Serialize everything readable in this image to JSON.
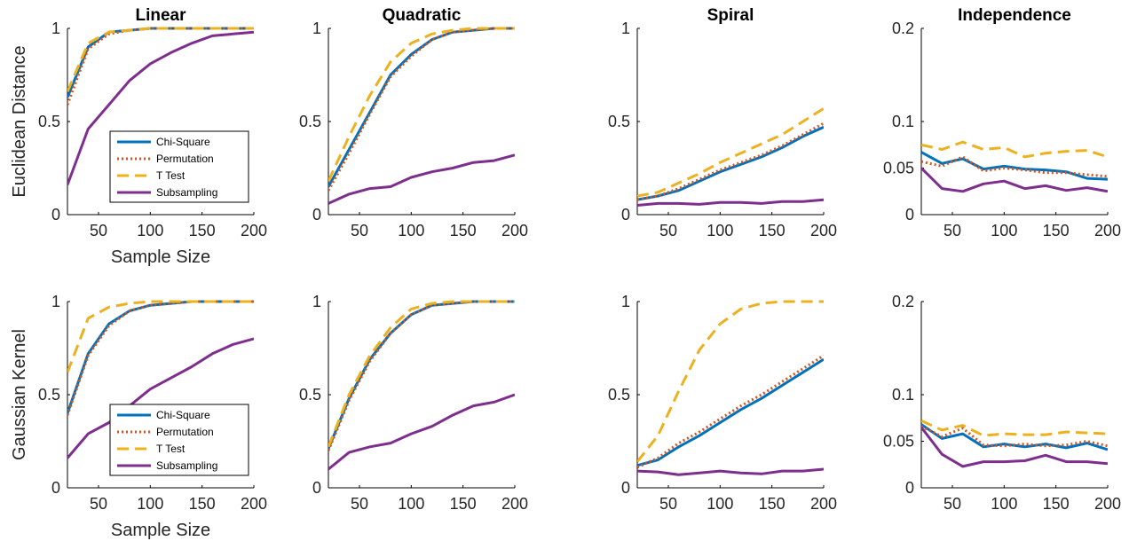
{
  "chart_data": [
    {
      "type": "line",
      "row": "euclidean",
      "col": "linear",
      "title": "Linear",
      "ylabel": "Euclidean Distance",
      "xlabel": "Sample Size",
      "xlim": [
        20,
        200
      ],
      "ylim": [
        0,
        1
      ],
      "xticks": [
        50,
        100,
        150,
        200
      ],
      "yticks": [
        0,
        0.5,
        1
      ],
      "ytick_labels": [
        "0",
        "0.5",
        "1"
      ],
      "legend": true,
      "x": [
        20,
        40,
        60,
        80,
        100,
        120,
        140,
        160,
        180,
        200
      ],
      "series": [
        {
          "name": "Chi-Square",
          "color": "#0072BD",
          "style": "solid",
          "values": [
            0.63,
            0.9,
            0.98,
            0.99,
            1.0,
            1.0,
            1.0,
            1.0,
            1.0,
            1.0
          ]
        },
        {
          "name": "Permutation",
          "color": "#D95319",
          "style": "dotted",
          "values": [
            0.59,
            0.89,
            0.97,
            0.99,
            1.0,
            1.0,
            1.0,
            1.0,
            1.0,
            1.0
          ]
        },
        {
          "name": "T Test",
          "color": "#EDB120",
          "style": "dashed",
          "values": [
            0.66,
            0.92,
            0.98,
            0.99,
            1.0,
            1.0,
            1.0,
            1.0,
            1.0,
            1.0
          ]
        },
        {
          "name": "Subsampling",
          "color": "#7E2F8E",
          "style": "solid",
          "values": [
            0.16,
            0.46,
            0.59,
            0.72,
            0.81,
            0.87,
            0.92,
            0.96,
            0.97,
            0.98
          ]
        }
      ]
    },
    {
      "type": "line",
      "row": "euclidean",
      "col": "quadratic",
      "title": "Quadratic",
      "xlim": [
        20,
        200
      ],
      "ylim": [
        0,
        1
      ],
      "xticks": [
        50,
        100,
        150,
        200
      ],
      "yticks": [
        0,
        0.5,
        1
      ],
      "ytick_labels": [
        "0",
        "0.5",
        "1"
      ],
      "legend": false,
      "x": [
        20,
        40,
        60,
        80,
        100,
        120,
        140,
        160,
        180,
        200
      ],
      "series": [
        {
          "name": "Chi-Square",
          "color": "#0072BD",
          "style": "solid",
          "values": [
            0.15,
            0.35,
            0.55,
            0.75,
            0.86,
            0.94,
            0.98,
            0.99,
            1.0,
            1.0
          ]
        },
        {
          "name": "Permutation",
          "color": "#D95319",
          "style": "dotted",
          "values": [
            0.13,
            0.33,
            0.54,
            0.74,
            0.85,
            0.94,
            0.98,
            0.99,
            1.0,
            1.0
          ]
        },
        {
          "name": "T Test",
          "color": "#EDB120",
          "style": "dashed",
          "values": [
            0.18,
            0.42,
            0.64,
            0.82,
            0.92,
            0.97,
            0.99,
            1.0,
            1.0,
            1.0
          ]
        },
        {
          "name": "Subsampling",
          "color": "#7E2F8E",
          "style": "solid",
          "values": [
            0.06,
            0.11,
            0.14,
            0.15,
            0.2,
            0.23,
            0.25,
            0.28,
            0.29,
            0.32
          ]
        }
      ]
    },
    {
      "type": "line",
      "row": "euclidean",
      "col": "spiral",
      "title": "Spiral",
      "xlim": [
        20,
        200
      ],
      "ylim": [
        0,
        1
      ],
      "xticks": [
        50,
        100,
        150,
        200
      ],
      "yticks": [
        0,
        0.5,
        1
      ],
      "ytick_labels": [
        "0",
        "0.5",
        "1"
      ],
      "legend": false,
      "x": [
        20,
        40,
        60,
        80,
        100,
        120,
        140,
        160,
        180,
        200
      ],
      "series": [
        {
          "name": "Chi-Square",
          "color": "#0072BD",
          "style": "solid",
          "values": [
            0.08,
            0.1,
            0.13,
            0.18,
            0.23,
            0.27,
            0.31,
            0.36,
            0.42,
            0.47
          ]
        },
        {
          "name": "Permutation",
          "color": "#D95319",
          "style": "dotted",
          "values": [
            0.08,
            0.1,
            0.14,
            0.19,
            0.24,
            0.28,
            0.32,
            0.37,
            0.43,
            0.49
          ]
        },
        {
          "name": "T Test",
          "color": "#EDB120",
          "style": "dashed",
          "values": [
            0.1,
            0.12,
            0.17,
            0.22,
            0.28,
            0.33,
            0.38,
            0.43,
            0.5,
            0.57
          ]
        },
        {
          "name": "Subsampling",
          "color": "#7E2F8E",
          "style": "solid",
          "values": [
            0.05,
            0.06,
            0.06,
            0.055,
            0.065,
            0.065,
            0.06,
            0.07,
            0.07,
            0.08
          ]
        }
      ]
    },
    {
      "type": "line",
      "row": "euclidean",
      "col": "independence",
      "title": "Independence",
      "xlim": [
        20,
        200
      ],
      "ylim": [
        0,
        0.2
      ],
      "xticks": [
        50,
        100,
        150,
        200
      ],
      "yticks": [
        0,
        0.05,
        0.1,
        0.2
      ],
      "ytick_labels": [
        "0",
        "0.05",
        "0.1",
        "0.2"
      ],
      "legend": false,
      "x": [
        20,
        40,
        60,
        80,
        100,
        120,
        140,
        160,
        180,
        200
      ],
      "series": [
        {
          "name": "Chi-Square",
          "color": "#0072BD",
          "style": "solid",
          "values": [
            0.067,
            0.055,
            0.06,
            0.049,
            0.052,
            0.049,
            0.048,
            0.046,
            0.039,
            0.038
          ]
        },
        {
          "name": "Permutation",
          "color": "#D95319",
          "style": "dotted",
          "values": [
            0.057,
            0.052,
            0.062,
            0.047,
            0.05,
            0.048,
            0.045,
            0.045,
            0.043,
            0.041
          ]
        },
        {
          "name": "T Test",
          "color": "#EDB120",
          "style": "dashed",
          "values": [
            0.075,
            0.07,
            0.078,
            0.07,
            0.072,
            0.062,
            0.066,
            0.068,
            0.069,
            0.062
          ]
        },
        {
          "name": "Subsampling",
          "color": "#7E2F8E",
          "style": "solid",
          "values": [
            0.05,
            0.028,
            0.025,
            0.033,
            0.036,
            0.028,
            0.031,
            0.026,
            0.029,
            0.025
          ]
        }
      ]
    },
    {
      "type": "line",
      "row": "gaussian",
      "col": "linear",
      "ylabel": "Gaussian Kernel",
      "xlabel": "Sample Size",
      "xlim": [
        20,
        200
      ],
      "ylim": [
        0,
        1
      ],
      "xticks": [
        50,
        100,
        150,
        200
      ],
      "yticks": [
        0,
        0.5,
        1
      ],
      "ytick_labels": [
        "0",
        "0.5",
        "1"
      ],
      "legend": true,
      "x": [
        20,
        40,
        60,
        80,
        100,
        120,
        140,
        160,
        180,
        200
      ],
      "series": [
        {
          "name": "Chi-Square",
          "color": "#0072BD",
          "style": "solid",
          "values": [
            0.4,
            0.72,
            0.88,
            0.95,
            0.98,
            0.99,
            1.0,
            1.0,
            1.0,
            1.0
          ]
        },
        {
          "name": "Permutation",
          "color": "#D95319",
          "style": "dotted",
          "values": [
            0.39,
            0.71,
            0.87,
            0.95,
            0.98,
            0.99,
            1.0,
            1.0,
            1.0,
            1.0
          ]
        },
        {
          "name": "T Test",
          "color": "#EDB120",
          "style": "dashed",
          "values": [
            0.62,
            0.91,
            0.97,
            0.99,
            1.0,
            1.0,
            1.0,
            1.0,
            1.0,
            1.0
          ]
        },
        {
          "name": "Subsampling",
          "color": "#7E2F8E",
          "style": "solid",
          "values": [
            0.16,
            0.29,
            0.35,
            0.44,
            0.53,
            0.59,
            0.65,
            0.72,
            0.77,
            0.8
          ]
        }
      ]
    },
    {
      "type": "line",
      "row": "gaussian",
      "col": "quadratic",
      "xlim": [
        20,
        200
      ],
      "ylim": [
        0,
        1
      ],
      "xticks": [
        50,
        100,
        150,
        200
      ],
      "yticks": [
        0,
        0.5,
        1
      ],
      "ytick_labels": [
        "0",
        "0.5",
        "1"
      ],
      "legend": false,
      "x": [
        20,
        40,
        60,
        80,
        100,
        120,
        140,
        160,
        180,
        200
      ],
      "series": [
        {
          "name": "Chi-Square",
          "color": "#0072BD",
          "style": "solid",
          "values": [
            0.21,
            0.48,
            0.69,
            0.83,
            0.93,
            0.98,
            0.99,
            1.0,
            1.0,
            1.0
          ]
        },
        {
          "name": "Permutation",
          "color": "#D95319",
          "style": "dotted",
          "values": [
            0.2,
            0.47,
            0.68,
            0.83,
            0.93,
            0.98,
            0.99,
            1.0,
            1.0,
            1.0
          ]
        },
        {
          "name": "T Test",
          "color": "#EDB120",
          "style": "dashed",
          "values": [
            0.22,
            0.5,
            0.71,
            0.86,
            0.96,
            0.99,
            1.0,
            1.0,
            1.0,
            1.0
          ]
        },
        {
          "name": "Subsampling",
          "color": "#7E2F8E",
          "style": "solid",
          "values": [
            0.1,
            0.19,
            0.22,
            0.24,
            0.29,
            0.33,
            0.39,
            0.44,
            0.46,
            0.5
          ]
        }
      ]
    },
    {
      "type": "line",
      "row": "gaussian",
      "col": "spiral",
      "xlim": [
        20,
        200
      ],
      "ylim": [
        0,
        1
      ],
      "xticks": [
        50,
        100,
        150,
        200
      ],
      "yticks": [
        0,
        0.5,
        1
      ],
      "ytick_labels": [
        "0",
        "0.5",
        "1"
      ],
      "legend": false,
      "x": [
        20,
        40,
        60,
        80,
        100,
        120,
        140,
        160,
        180,
        200
      ],
      "series": [
        {
          "name": "Chi-Square",
          "color": "#0072BD",
          "style": "solid",
          "values": [
            0.12,
            0.15,
            0.22,
            0.28,
            0.35,
            0.42,
            0.48,
            0.55,
            0.62,
            0.69
          ]
        },
        {
          "name": "Permutation",
          "color": "#D95319",
          "style": "dotted",
          "values": [
            0.11,
            0.16,
            0.24,
            0.3,
            0.37,
            0.44,
            0.5,
            0.57,
            0.64,
            0.71
          ]
        },
        {
          "name": "T Test",
          "color": "#EDB120",
          "style": "dashed",
          "values": [
            0.14,
            0.28,
            0.52,
            0.74,
            0.88,
            0.96,
            0.99,
            1.0,
            1.0,
            1.0
          ]
        },
        {
          "name": "Subsampling",
          "color": "#7E2F8E",
          "style": "solid",
          "values": [
            0.09,
            0.085,
            0.07,
            0.08,
            0.09,
            0.08,
            0.075,
            0.09,
            0.09,
            0.1
          ]
        }
      ]
    },
    {
      "type": "line",
      "row": "gaussian",
      "col": "independence",
      "xlim": [
        20,
        200
      ],
      "ylim": [
        0,
        0.2
      ],
      "xticks": [
        50,
        100,
        150,
        200
      ],
      "yticks": [
        0,
        0.05,
        0.1,
        0.2
      ],
      "ytick_labels": [
        "0",
        "0.05",
        "0.1",
        "0.2"
      ],
      "legend": false,
      "x": [
        20,
        40,
        60,
        80,
        100,
        120,
        140,
        160,
        180,
        200
      ],
      "series": [
        {
          "name": "Chi-Square",
          "color": "#0072BD",
          "style": "solid",
          "values": [
            0.068,
            0.053,
            0.058,
            0.044,
            0.047,
            0.044,
            0.047,
            0.043,
            0.048,
            0.041
          ]
        },
        {
          "name": "Permutation",
          "color": "#D95319",
          "style": "dotted",
          "values": [
            0.066,
            0.055,
            0.064,
            0.046,
            0.045,
            0.047,
            0.045,
            0.046,
            0.05,
            0.045
          ]
        },
        {
          "name": "T Test",
          "color": "#EDB120",
          "style": "dashed",
          "values": [
            0.072,
            0.062,
            0.067,
            0.056,
            0.058,
            0.057,
            0.057,
            0.06,
            0.059,
            0.058
          ]
        },
        {
          "name": "Subsampling",
          "color": "#7E2F8E",
          "style": "solid",
          "values": [
            0.065,
            0.036,
            0.023,
            0.028,
            0.028,
            0.029,
            0.035,
            0.028,
            0.028,
            0.026
          ]
        }
      ]
    }
  ]
}
